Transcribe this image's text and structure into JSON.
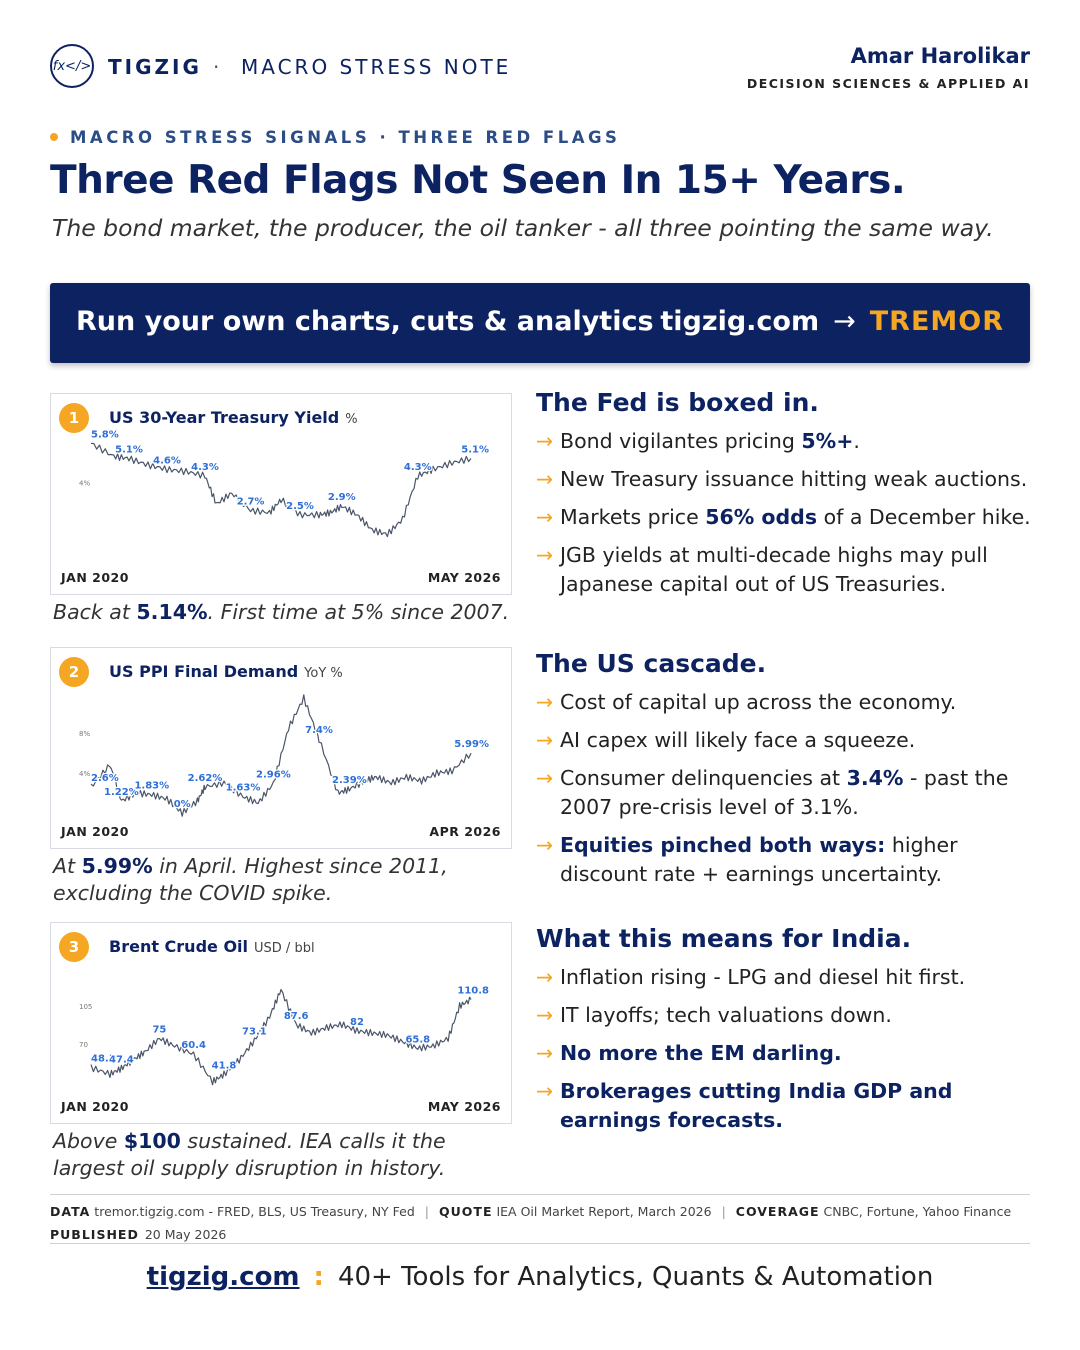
{
  "header": {
    "brand": "TIGZIG",
    "separator": "·",
    "note_type": "MACRO STRESS NOTE",
    "logo_text": "fx</>",
    "author": "Amar Harolikar",
    "author_role": "DECISION SCIENCES & APPLIED AI"
  },
  "kicker": "MACRO STRESS SIGNALS · THREE RED FLAGS",
  "title": "Three Red Flags Not Seen In 15+ Years.",
  "subtitle": "The bond market, the producer, the oil tanker - all three pointing the same way.",
  "banner": {
    "left": "Run your own charts, cuts & analytics",
    "site": "tigzig.com",
    "arrow": "→",
    "tool": "TREMOR"
  },
  "charts": [
    {
      "number": "1",
      "title": "US 30-Year Treasury Yield",
      "unit": "%",
      "start": "JAN 2020",
      "end": "MAY 2026",
      "caption_pre": "Back at ",
      "caption_bold": "5.14%",
      "caption_post": ". First time at 5% since 2007."
    },
    {
      "number": "2",
      "title": "US PPI Final Demand",
      "unit": "YoY %",
      "start": "JAN 2020",
      "end": "APR 2026",
      "caption_pre": "At ",
      "caption_bold": "5.99%",
      "caption_post": " in April. Highest since 2011, excluding the COVID spike."
    },
    {
      "number": "3",
      "title": "Brent Crude Oil",
      "unit": "USD / bbl",
      "start": "JAN 2020",
      "end": "MAY 2026",
      "caption_pre": "Above ",
      "caption_bold": "$100",
      "caption_post": " sustained. IEA calls it the largest oil supply disruption in history."
    }
  ],
  "chart_data": [
    {
      "type": "line",
      "title": "US 30-Year Treasury Yield",
      "color": "#4a5568",
      "label_color": "#2e6fd8",
      "ylim": [
        0,
        6
      ],
      "ticks": [
        "4%"
      ],
      "x": [
        0,
        0.06,
        0.1,
        0.15,
        0.2,
        0.25,
        0.3,
        0.33,
        0.37,
        0.42,
        0.47,
        0.5,
        0.55,
        0.6,
        0.63,
        0.66,
        0.7,
        0.74,
        0.78,
        0.82,
        0.86,
        0.9,
        0.95,
        1.0
      ],
      "y": [
        5.8,
        5.2,
        5.1,
        4.8,
        4.6,
        4.5,
        4.3,
        3.0,
        3.5,
        2.7,
        2.6,
        3.2,
        2.5,
        2.5,
        2.6,
        2.9,
        2.5,
        1.8,
        1.6,
        2.3,
        4.3,
        4.6,
        4.9,
        5.1
      ],
      "labels": [
        {
          "i": 0,
          "text": "5.8%"
        },
        {
          "i": 2,
          "text": "5.1%"
        },
        {
          "i": 4,
          "text": "4.6%"
        },
        {
          "i": 6,
          "text": "4.3%"
        },
        {
          "i": 9,
          "text": "2.7%"
        },
        {
          "i": 12,
          "text": "2.5%"
        },
        {
          "i": 15,
          "text": "2.9%"
        },
        {
          "i": 20,
          "text": "4.3%"
        },
        {
          "i": 23,
          "text": "5.1%"
        }
      ]
    },
    {
      "type": "line",
      "title": "US PPI Final Demand",
      "color": "#4a5568",
      "label_color": "#2e6fd8",
      "ylim": [
        -1,
        12
      ],
      "ticks": [
        "8%",
        "4%"
      ],
      "x": [
        0,
        0.05,
        0.08,
        0.12,
        0.16,
        0.2,
        0.24,
        0.28,
        0.3,
        0.35,
        0.4,
        0.44,
        0.48,
        0.52,
        0.56,
        0.6,
        0.65,
        0.68,
        0.72,
        0.75,
        0.79,
        0.83,
        0.87,
        0.91,
        0.95,
        1.0
      ],
      "y": [
        2.6,
        4.8,
        1.22,
        2.0,
        1.83,
        1.4,
        0.0,
        1.2,
        2.62,
        3.0,
        1.63,
        1.0,
        2.96,
        8.5,
        11.5,
        7.4,
        2.0,
        2.39,
        3.2,
        3.6,
        3.0,
        3.6,
        3.2,
        4.0,
        4.2,
        5.99
      ],
      "labels": [
        {
          "i": 0,
          "text": "2.6%"
        },
        {
          "i": 2,
          "text": "1.22%"
        },
        {
          "i": 4,
          "text": "1.83%"
        },
        {
          "i": 6,
          "text": "0%"
        },
        {
          "i": 8,
          "text": "2.62%"
        },
        {
          "i": 10,
          "text": "1.63%"
        },
        {
          "i": 12,
          "text": "2.96%"
        },
        {
          "i": 15,
          "text": "7.4%"
        },
        {
          "i": 17,
          "text": "2.39%"
        },
        {
          "i": 25,
          "text": "5.99%"
        }
      ]
    },
    {
      "type": "line",
      "title": "Brent Crude Oil",
      "color": "#4a5568",
      "label_color": "#2e6fd8",
      "ylim": [
        20,
        140
      ],
      "ticks": [
        "105",
        "70"
      ],
      "x": [
        0,
        0.05,
        0.08,
        0.11,
        0.14,
        0.18,
        0.22,
        0.27,
        0.32,
        0.35,
        0.39,
        0.43,
        0.47,
        0.5,
        0.54,
        0.58,
        0.62,
        0.66,
        0.7,
        0.74,
        0.78,
        0.82,
        0.86,
        0.9,
        0.94,
        0.97,
        1.0
      ],
      "y": [
        48.1,
        42,
        47.4,
        55,
        62,
        75,
        68,
        60.4,
        35,
        41.8,
        55,
        73.1,
        95,
        120,
        87.6,
        80,
        85,
        88,
        82,
        80,
        78,
        72,
        65.8,
        68,
        75,
        105,
        110.8
      ],
      "labels": [
        {
          "i": 0,
          "text": "48.1"
        },
        {
          "i": 2,
          "text": "47.4"
        },
        {
          "i": 5,
          "text": "75"
        },
        {
          "i": 7,
          "text": "60.4"
        },
        {
          "i": 9,
          "text": "41.8"
        },
        {
          "i": 11,
          "text": "73.1"
        },
        {
          "i": 14,
          "text": "87.6"
        },
        {
          "i": 18,
          "text": "82"
        },
        {
          "i": 22,
          "text": "65.8"
        },
        {
          "i": 26,
          "text": "110.8"
        }
      ]
    }
  ],
  "sections": [
    {
      "title": "The Fed is boxed in.",
      "bullets": [
        {
          "pre": "Bond vigilantes pricing ",
          "bold": "5%+",
          "post": "."
        },
        {
          "pre": "New Treasury issuance hitting weak auctions.",
          "bold": "",
          "post": ""
        },
        {
          "pre": "Markets price ",
          "bold": "56% odds",
          "post": " of a December hike."
        },
        {
          "pre": "JGB yields at multi-decade highs may pull Japanese capital out of US Treasuries.",
          "bold": "",
          "post": ""
        }
      ]
    },
    {
      "title": "The US cascade.",
      "bullets": [
        {
          "pre": "Cost of capital up across the economy.",
          "bold": "",
          "post": ""
        },
        {
          "pre": "AI capex will likely face a squeeze.",
          "bold": "",
          "post": ""
        },
        {
          "pre": "Consumer delinquencies at ",
          "bold": "3.4%",
          "post": " - past the 2007 pre-crisis level of 3.1%."
        },
        {
          "pre": "",
          "bold": "Equities pinched both ways:",
          "post": " higher discount rate + earnings uncertainty."
        }
      ]
    },
    {
      "title": "What this means for India.",
      "bullets": [
        {
          "pre": "Inflation rising - LPG and diesel hit first.",
          "bold": "",
          "post": ""
        },
        {
          "pre": "IT layoffs; tech valuations down.",
          "bold": "",
          "post": ""
        },
        {
          "pre": "",
          "bold": "No more the EM darling.",
          "post": ""
        },
        {
          "pre": "",
          "bold": "Brokerages cutting India GDP and earnings forecasts.",
          "post": ""
        }
      ]
    }
  ],
  "bullet_arrow": "→",
  "footer": {
    "data_label": "DATA",
    "data_value": "tremor.tigzig.com - FRED, BLS, US Treasury, NY Fed",
    "quote_label": "QUOTE",
    "quote_value": "IEA Oil Market Report, March 2026",
    "coverage_label": "COVERAGE",
    "coverage_value": "CNBC, Fortune, Yahoo Finance",
    "published_label": "PUBLISHED",
    "published_value": "20 May 2026",
    "sep": "|",
    "site": "tigzig.com",
    "colon": ":",
    "tagline": "40+ Tools for Analytics, Quants & Automation"
  },
  "colors": {
    "navy": "#0d2261",
    "accent": "#f5a623",
    "label_blue": "#2e6fd8"
  }
}
